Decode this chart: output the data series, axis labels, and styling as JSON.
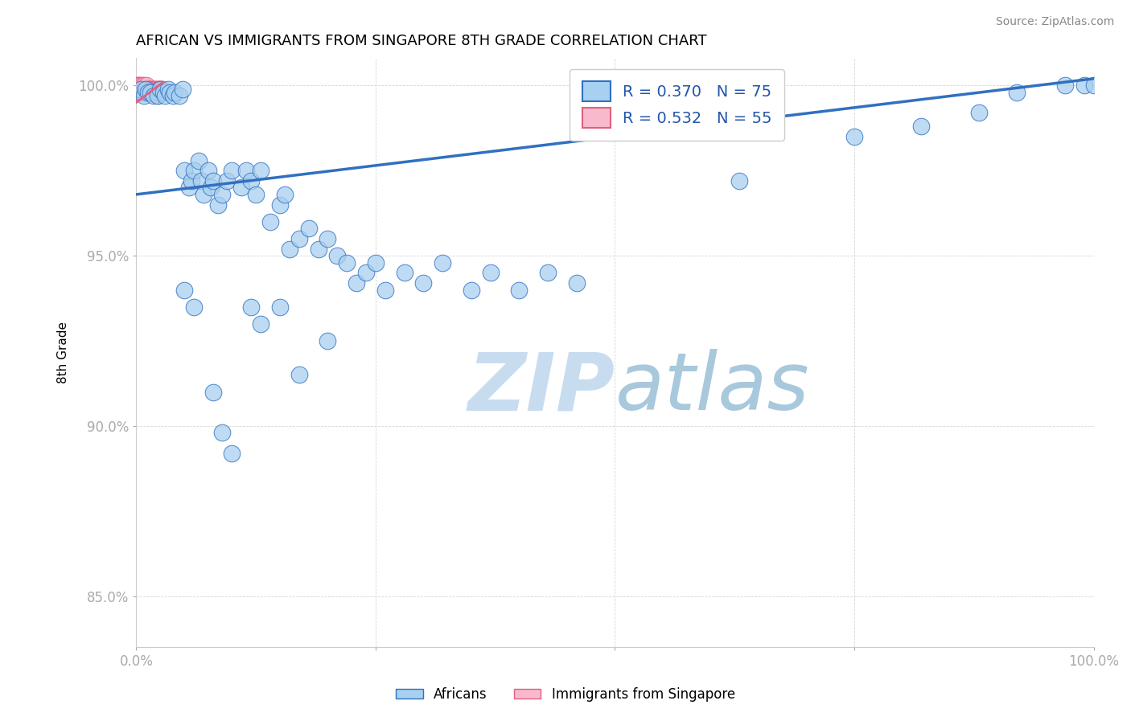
{
  "title": "AFRICAN VS IMMIGRANTS FROM SINGAPORE 8TH GRADE CORRELATION CHART",
  "source": "Source: ZipAtlas.com",
  "xlabel": "",
  "ylabel": "8th Grade",
  "xlim": [
    0.0,
    1.0
  ],
  "ylim": [
    0.835,
    1.008
  ],
  "yticks": [
    0.85,
    0.9,
    0.95,
    1.0
  ],
  "ytick_labels": [
    "85.0%",
    "90.0%",
    "95.0%",
    "100.0%"
  ],
  "xticks": [
    0.0,
    0.25,
    0.5,
    0.75,
    1.0
  ],
  "xtick_labels": [
    "0.0%",
    "",
    "",
    "",
    "100.0%"
  ],
  "legend_r1": "R = 0.370",
  "legend_n1": "N = 75",
  "legend_r2": "R = 0.532",
  "legend_n2": "N = 55",
  "blue_color": "#A8D0F0",
  "pink_color": "#F9B8CC",
  "line_blue_color": "#3070C0",
  "line_pink_color": "#E06080",
  "watermark_zip_color": "#C8DCF0",
  "watermark_atlas_color": "#A8C8DC",
  "background_color": "#ffffff",
  "title_fontsize": 13,
  "africans_x": [
    0.005,
    0.008,
    0.01,
    0.012,
    0.015,
    0.018,
    0.022,
    0.025,
    0.028,
    0.03,
    0.033,
    0.035,
    0.038,
    0.04,
    0.045,
    0.048,
    0.05,
    0.055,
    0.058,
    0.06,
    0.065,
    0.068,
    0.07,
    0.075,
    0.078,
    0.08,
    0.085,
    0.09,
    0.095,
    0.1,
    0.11,
    0.115,
    0.12,
    0.125,
    0.13,
    0.14,
    0.15,
    0.155,
    0.16,
    0.17,
    0.18,
    0.19,
    0.2,
    0.21,
    0.22,
    0.23,
    0.24,
    0.25,
    0.26,
    0.28,
    0.3,
    0.32,
    0.35,
    0.37,
    0.4,
    0.43,
    0.46,
    0.63,
    0.75,
    0.82,
    0.88,
    0.92,
    0.97,
    0.99,
    1.0,
    0.05,
    0.06,
    0.08,
    0.09,
    0.1,
    0.12,
    0.13,
    0.15,
    0.17,
    0.2
  ],
  "africans_y": [
    0.999,
    0.997,
    0.999,
    0.998,
    0.998,
    0.997,
    0.997,
    0.999,
    0.998,
    0.997,
    0.999,
    0.998,
    0.997,
    0.998,
    0.997,
    0.999,
    0.975,
    0.97,
    0.972,
    0.975,
    0.978,
    0.972,
    0.968,
    0.975,
    0.97,
    0.972,
    0.965,
    0.968,
    0.972,
    0.975,
    0.97,
    0.975,
    0.972,
    0.968,
    0.975,
    0.96,
    0.965,
    0.968,
    0.952,
    0.955,
    0.958,
    0.952,
    0.955,
    0.95,
    0.948,
    0.942,
    0.945,
    0.948,
    0.94,
    0.945,
    0.942,
    0.948,
    0.94,
    0.945,
    0.94,
    0.945,
    0.942,
    0.972,
    0.985,
    0.988,
    0.992,
    0.998,
    1.0,
    1.0,
    1.0,
    0.94,
    0.935,
    0.91,
    0.898,
    0.892,
    0.935,
    0.93,
    0.935,
    0.915,
    0.925
  ],
  "singapore_x": [
    0.001,
    0.001,
    0.002,
    0.002,
    0.003,
    0.003,
    0.003,
    0.004,
    0.004,
    0.005,
    0.005,
    0.006,
    0.006,
    0.007,
    0.007,
    0.008,
    0.008,
    0.009,
    0.009,
    0.01,
    0.01,
    0.011,
    0.011,
    0.012,
    0.012,
    0.013,
    0.013,
    0.014,
    0.014,
    0.015,
    0.015,
    0.016,
    0.016,
    0.017,
    0.017,
    0.018,
    0.018,
    0.019,
    0.019,
    0.02,
    0.02,
    0.021,
    0.021,
    0.022,
    0.022,
    0.022,
    0.023,
    0.023,
    0.024,
    0.024,
    0.025,
    0.025,
    0.026,
    0.026,
    0.027
  ],
  "singapore_y": [
    0.999,
    1.0,
    0.998,
    1.0,
    0.999,
    1.0,
    0.998,
    0.999,
    1.0,
    0.998,
    0.999,
    0.999,
    1.0,
    0.998,
    0.999,
    0.999,
    1.0,
    0.998,
    0.999,
    0.998,
    0.999,
    0.999,
    1.0,
    0.998,
    0.999,
    0.999,
    0.998,
    0.999,
    0.998,
    0.999,
    0.998,
    0.999,
    0.998,
    0.999,
    0.998,
    0.999,
    0.998,
    0.999,
    0.998,
    0.999,
    0.998,
    0.999,
    0.998,
    0.999,
    0.998,
    0.997,
    0.999,
    0.998,
    0.999,
    0.998,
    0.999,
    0.998,
    0.999,
    0.998,
    0.999
  ],
  "blue_line_x": [
    0.0,
    1.0
  ],
  "blue_line_y": [
    0.968,
    1.002
  ],
  "pink_line_x": [
    0.0,
    0.028
  ],
  "pink_line_y": [
    0.995,
    1.001
  ]
}
